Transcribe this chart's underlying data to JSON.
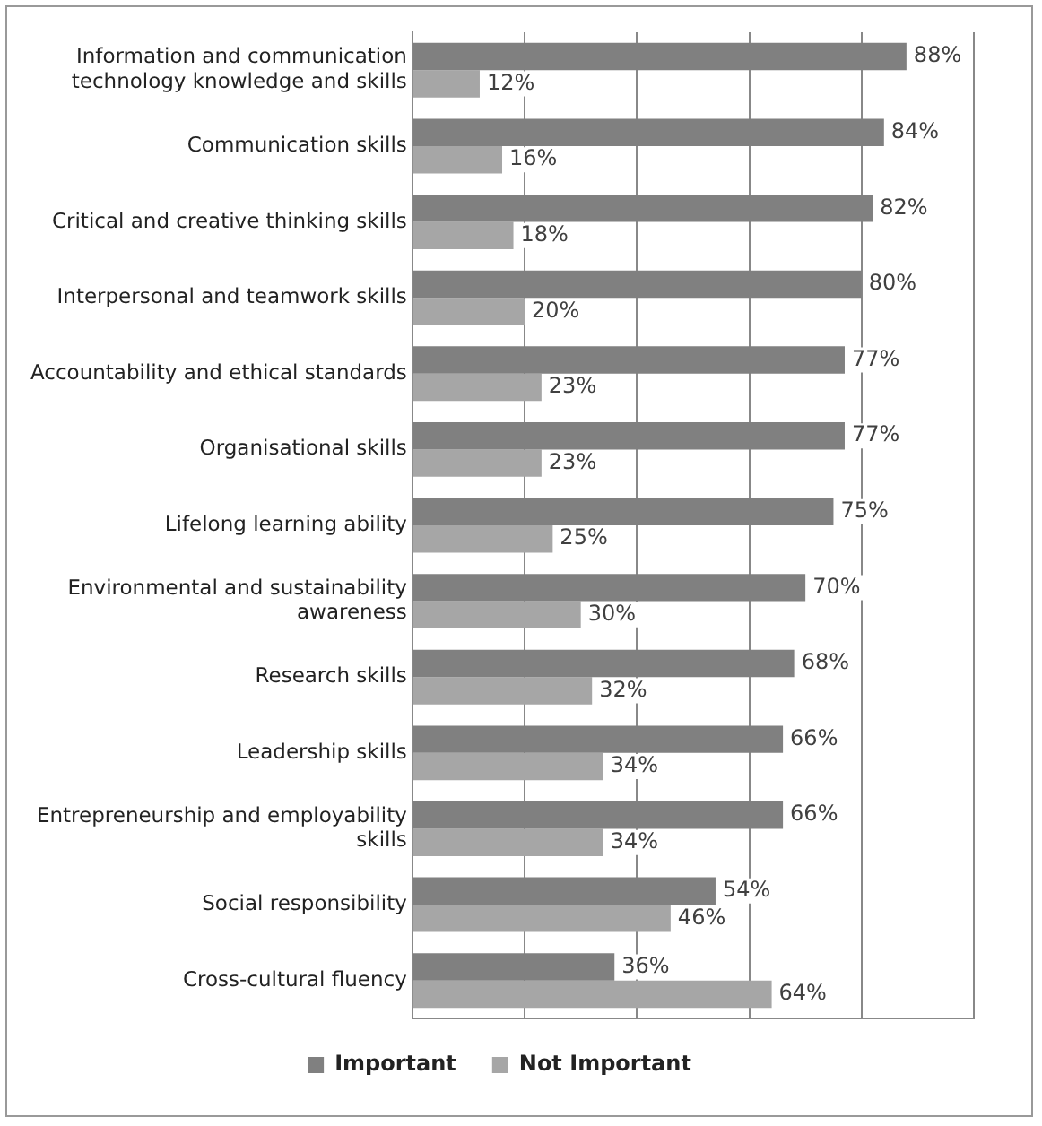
{
  "chart_data": {
    "type": "bar",
    "orientation": "horizontal",
    "categories": [
      "Information and communication technology knowledge and skills",
      "Communication skills",
      "Critical and creative thinking skills",
      "Interpersonal and teamwork skills",
      "Accountability and ethical standards",
      "Organisational skills",
      "Lifelong learning ability",
      "Environmental and sustainability awareness",
      "Research skills",
      "Leadership skills",
      "Entrepreneurship and employability skills",
      "Social responsibility",
      "Cross-cultural fluency"
    ],
    "series": [
      {
        "name": "Important",
        "color": "#808080",
        "values": [
          88,
          84,
          82,
          80,
          77,
          77,
          75,
          70,
          68,
          66,
          66,
          54,
          36
        ],
        "value_labels": [
          "88%",
          "84%",
          "82%",
          "80%",
          "77%",
          "77%",
          "75%",
          "70%",
          "68%",
          "66%",
          "66%",
          "54%",
          "36%"
        ]
      },
      {
        "name": "Not Important",
        "color": "#a6a6a6",
        "values": [
          12,
          16,
          18,
          20,
          23,
          23,
          25,
          30,
          32,
          34,
          34,
          46,
          64
        ],
        "value_labels": [
          "12%",
          "16%",
          "18%",
          "20%",
          "23%",
          "23%",
          "25%",
          "30%",
          "32%",
          "34%",
          "34%",
          "46%",
          "64%"
        ]
      }
    ],
    "xlim": [
      0,
      100
    ],
    "xticks": [
      {
        "value": 0,
        "label": null
      },
      {
        "value": 20,
        "label": null
      },
      {
        "value": 40,
        "label": null
      },
      {
        "value": 60,
        "label": null
      },
      {
        "value": 80,
        "label": null
      },
      {
        "value": 100,
        "label": null
      }
    ],
    "grid": "x",
    "legend": "bottom",
    "tick_labels": "y"
  }
}
